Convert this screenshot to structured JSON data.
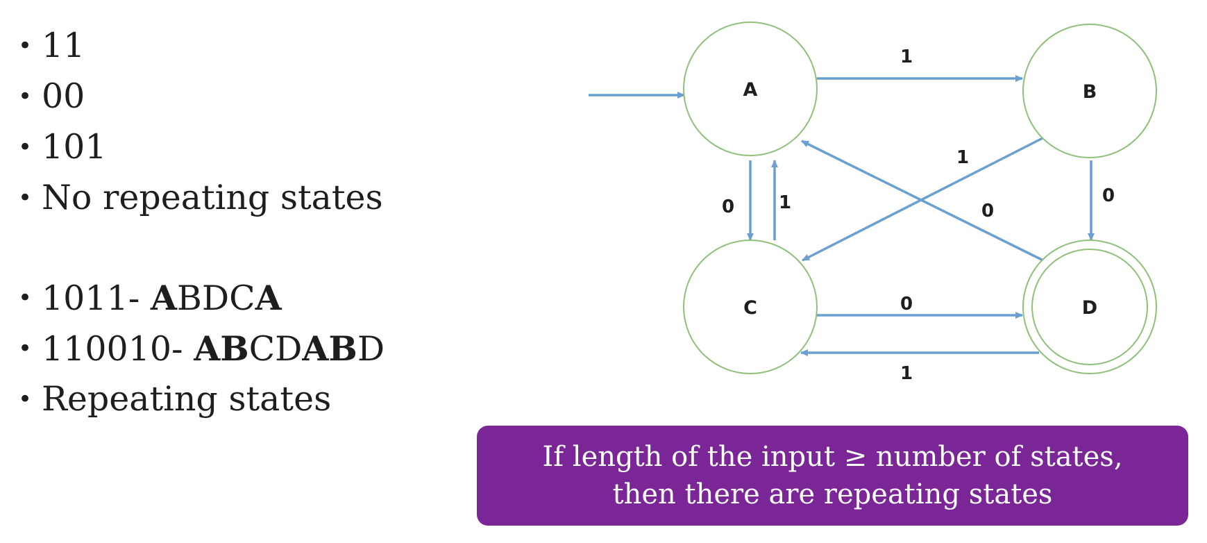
{
  "bullets_top": [
    {
      "segments": [
        {
          "text": "11",
          "bold": false
        }
      ]
    },
    {
      "segments": [
        {
          "text": "00",
          "bold": false
        }
      ]
    },
    {
      "segments": [
        {
          "text": "101",
          "bold": false
        }
      ]
    },
    {
      "segments": [
        {
          "text": "No repeating states",
          "bold": false
        }
      ]
    }
  ],
  "bullets_bottom": [
    {
      "segments": [
        {
          "text": "1011- ",
          "bold": false
        },
        {
          "text": "A",
          "bold": true
        },
        {
          "text": "BDC",
          "bold": false
        },
        {
          "text": "A",
          "bold": true
        }
      ]
    },
    {
      "segments": [
        {
          "text": "110010- ",
          "bold": false
        },
        {
          "text": "AB",
          "bold": true
        },
        {
          "text": "CD",
          "bold": false
        },
        {
          "text": "AB",
          "bold": true
        },
        {
          "text": "D",
          "bold": false
        }
      ]
    },
    {
      "segments": [
        {
          "text": "Repeating states",
          "bold": false
        }
      ]
    }
  ],
  "bullet_symbol": "•",
  "diagram": {
    "states": [
      {
        "id": "A",
        "label": "A",
        "start": true,
        "accepting": false
      },
      {
        "id": "B",
        "label": "B",
        "start": false,
        "accepting": false
      },
      {
        "id": "C",
        "label": "C",
        "start": false,
        "accepting": false
      },
      {
        "id": "D",
        "label": "D",
        "start": false,
        "accepting": true
      }
    ],
    "transitions": [
      {
        "from": "A",
        "to": "B",
        "label": "1"
      },
      {
        "from": "A",
        "to": "C",
        "label": "0"
      },
      {
        "from": "C",
        "to": "A",
        "label": "1"
      },
      {
        "from": "B",
        "to": "C",
        "label": "1"
      },
      {
        "from": "B",
        "to": "D",
        "label": "0"
      },
      {
        "from": "D",
        "to": "A",
        "label": "0"
      },
      {
        "from": "C",
        "to": "D",
        "label": "0"
      },
      {
        "from": "D",
        "to": "C",
        "label": "1"
      }
    ],
    "colors": {
      "state_stroke": "#8fc07a",
      "edge": "#6a9fd0",
      "text": "#1e1e1e"
    }
  },
  "callout": {
    "line1": "If length of the input ≥ number of states,",
    "line2": "then there are repeating states",
    "background": "#7a2696"
  }
}
